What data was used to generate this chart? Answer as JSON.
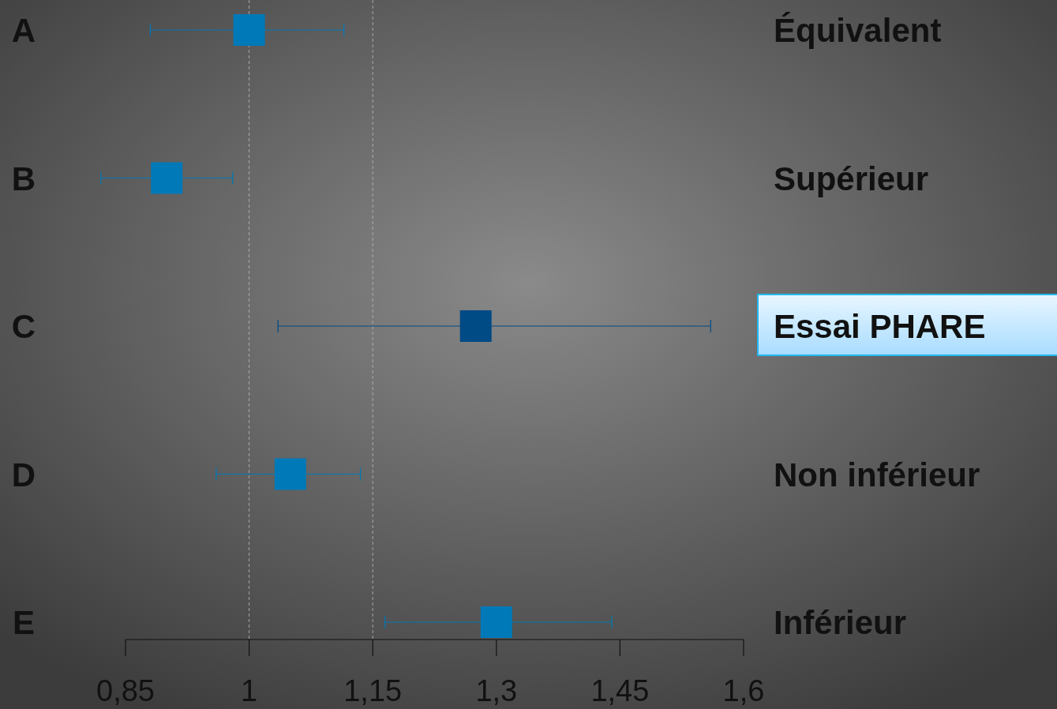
{
  "chart_data": {
    "type": "scatter",
    "orientation": "horizontal",
    "marker": "square",
    "categories": [
      "A",
      "B",
      "C",
      "D",
      "E"
    ],
    "values": [
      1.0,
      0.9,
      1.275,
      1.05,
      1.3
    ],
    "errors": [
      [
        0.88,
        1.115
      ],
      [
        0.82,
        0.98
      ],
      [
        1.035,
        1.56
      ],
      [
        0.96,
        1.135
      ],
      [
        1.165,
        1.44
      ]
    ],
    "colors": [
      "#0079b8",
      "#0079b8",
      "#004a85",
      "#0079b8",
      "#0079b8"
    ],
    "xlim": [
      0.85,
      1.6
    ],
    "xticks": [
      {
        "value": 0.85,
        "label": "0,85"
      },
      1,
      {
        "value": 1.15,
        "label": "1,15"
      },
      {
        "value": 1.3,
        "label": "1,3"
      },
      {
        "value": 1.45,
        "label": "1,45"
      },
      {
        "value": 1.6,
        "label": "1,6"
      }
    ],
    "ref_lines": [
      {
        "axis": "x",
        "value": 1,
        "line_style": "dashed",
        "color": "#bbbbbb"
      },
      {
        "axis": "x",
        "value": 1.15,
        "line_style": "dashed",
        "color": "#bbbbbb"
      }
    ],
    "annotations": [
      "Équivalent",
      "Supérieur",
      "Essai PHARE",
      "Non inférieur",
      "Inférieur"
    ],
    "grid": false
  }
}
